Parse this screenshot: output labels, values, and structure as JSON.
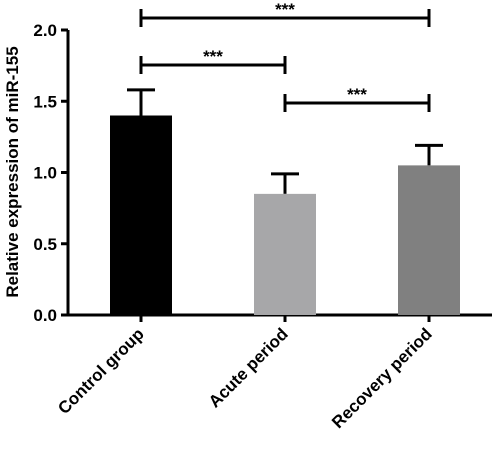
{
  "chart_data": {
    "type": "bar",
    "y_label": "Relative expression of miR-155",
    "categories": [
      "Control group",
      "Acute period",
      "Recovery period"
    ],
    "values": [
      1.4,
      0.85,
      1.05
    ],
    "errors": [
      0.18,
      0.14,
      0.14
    ],
    "colors": [
      "#000000",
      "#a7a7a9",
      "#808080"
    ],
    "ylim": [
      0,
      2
    ],
    "yticks": [
      {
        "value": 0,
        "label": "0.0"
      },
      0.5,
      {
        "value": 1,
        "label": "1.0"
      },
      1.5,
      {
        "value": 2,
        "label": "2.0"
      }
    ],
    "annotations": [
      {
        "text": "***",
        "between": [
          "Control group",
          "Recovery period"
        ]
      },
      {
        "text": "***",
        "between": [
          "Control group",
          "Acute period"
        ]
      },
      {
        "text": "***",
        "between": [
          "Acute period",
          "Recovery period"
        ]
      }
    ]
  }
}
